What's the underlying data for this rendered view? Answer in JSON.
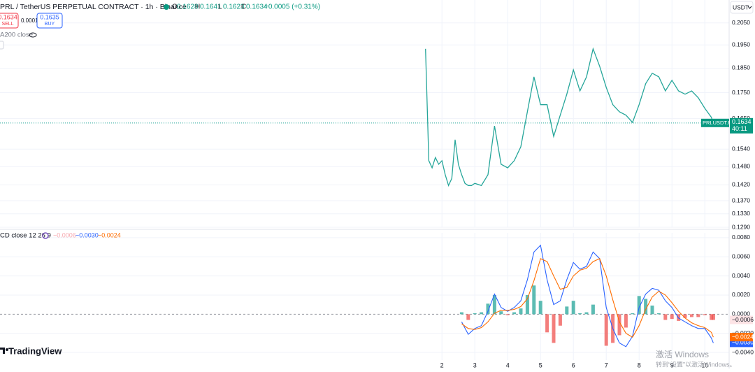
{
  "header": {
    "symbol": "PRL / TetherUS PERPETUAL CONTRACT · 1h · Binance",
    "ohlc": [
      {
        "label": "O",
        "value": 0.1628
      },
      {
        "label": "H",
        "value": 0.1641
      },
      {
        "label": "L",
        "value": 0.1623
      },
      {
        "label": "C",
        "value": 0.1634
      }
    ],
    "change": "+0.0005 (+0.31%)",
    "sell": {
      "price": 0.1634,
      "label": "SELL"
    },
    "spread": 0.0001,
    "buy": {
      "price": 0.1635,
      "label": "BUY"
    },
    "ma_label": "A200 close",
    "macd_label": "CD close 12 26 9",
    "currency": "USDT",
    "brand": "TradingView"
  },
  "watermark": {
    "title": "激活 Windows",
    "subtitle": "转到“设置”以激活Windows。"
  },
  "chart_data": [
    {
      "type": "line",
      "log_scale": true,
      "grid": true,
      "color": "#26a69a",
      "x": [
        1.5,
        1.6,
        1.7,
        1.8,
        1.9,
        2.0,
        2.1,
        2.2,
        2.3,
        2.4,
        2.5,
        2.6,
        2.7,
        2.8,
        2.9,
        3.0,
        3.2,
        3.4,
        3.6,
        3.8,
        4.0,
        4.2,
        4.4,
        4.6,
        4.8,
        5.0,
        5.2,
        5.4,
        5.6,
        5.8,
        6.0,
        6.2,
        6.4,
        6.6,
        6.8,
        7.0,
        7.2,
        7.4,
        7.6,
        7.8,
        8.0,
        8.2,
        8.4,
        8.6,
        8.8,
        9.0,
        9.2,
        9.4,
        9.6,
        9.8,
        10.0,
        10.2,
        10.26
      ],
      "values": [
        0.1933,
        0.15,
        0.1476,
        0.1511,
        0.1488,
        0.15,
        0.1453,
        0.1418,
        0.1441,
        0.1573,
        0.1488,
        0.1453,
        0.1425,
        0.1418,
        0.1418,
        0.1425,
        0.1418,
        0.1453,
        0.1623,
        0.1488,
        0.1476,
        0.15,
        0.1548,
        0.1676,
        0.1814,
        0.1703,
        0.1703,
        0.1585,
        0.1663,
        0.1744,
        0.1843,
        0.1757,
        0.1814,
        0.1933,
        0.1858,
        0.1771,
        0.1703,
        0.1676,
        0.1663,
        0.1636,
        0.1703,
        0.1786,
        0.1829,
        0.1814,
        0.1757,
        0.18,
        0.1757,
        0.1744,
        0.1757,
        0.173,
        0.1689,
        0.1655,
        0.1634
      ],
      "xlim": [
        -11.45,
        10.74
      ],
      "ylim": [
        0.129,
        0.2159
      ],
      "yticks": [
        {
          "value": 0.205,
          "label": "0.2050"
        },
        {
          "value": 0.195,
          "label": "0.1950"
        },
        {
          "value": 0.185,
          "label": "0.1850"
        },
        {
          "value": 0.175,
          "label": "0.1750"
        },
        {
          "value": 0.165,
          "label": "0.1650"
        },
        {
          "value": 0.154,
          "label": "0.1540"
        },
        {
          "value": 0.148,
          "label": "0.1480"
        },
        {
          "value": 0.142,
          "label": "0.1420"
        },
        {
          "value": 0.137,
          "label": "0.1370"
        },
        {
          "value": 0.133,
          "label": "0.1330"
        },
        {
          "value": 0.129,
          "label": "0.1290"
        }
      ],
      "last_price": 0.1634,
      "symbol_tag": "PRLUSDT.P",
      "countdown": "40:11"
    },
    {
      "type": "macd",
      "grid": true,
      "x": [
        2.6,
        2.8,
        3.0,
        3.2,
        3.4,
        3.6,
        3.8,
        4.0,
        4.2,
        4.4,
        4.6,
        4.8,
        5.0,
        5.2,
        5.4,
        5.6,
        5.8,
        6.0,
        6.2,
        6.4,
        6.6,
        6.8,
        7.0,
        7.2,
        7.4,
        7.6,
        7.8,
        8.0,
        8.2,
        8.4,
        8.6,
        8.8,
        9.0,
        9.2,
        9.4,
        9.6,
        9.8,
        10.0,
        10.2,
        10.26
      ],
      "series": [
        {
          "style": "bar",
          "color": "#26a69a",
          "negative_color": "#ef5350",
          "last_label": "−0.0006",
          "values": [
            0.0002,
            -0.0006,
            0.0001,
            0.0002,
            0.0011,
            0.002,
            0.0003,
            -0.0001,
            0.0002,
            0.0006,
            0.002,
            0.003,
            0.0014,
            -0.0019,
            -0.003,
            -0.0012,
            0.0008,
            0.0014,
            0.0001,
            0.0002,
            0.001,
            0.0,
            -0.0033,
            -0.003,
            -0.0022,
            -0.0014,
            0.0001,
            0.0019,
            0.0016,
            0.0009,
            0.0001,
            -0.0006,
            -0.0005,
            -0.0007,
            -0.0004,
            -0.0003,
            -0.0003,
            -0.0001,
            -0.0006,
            -0.0006
          ]
        },
        {
          "style": "line",
          "color": "#2962ff",
          "last_label": "−0.0030",
          "values": [
            -0.0008,
            -0.0021,
            -0.0015,
            -0.0012,
            0.0003,
            0.0021,
            0.0007,
            0.0003,
            0.0007,
            0.0014,
            0.0036,
            0.0065,
            0.0072,
            0.0036,
            0.001,
            0.0014,
            0.0036,
            0.0054,
            0.0047,
            0.005,
            0.0065,
            0.0058,
            0.0007,
            -0.0015,
            -0.003,
            -0.0034,
            -0.0023,
            0.0007,
            0.0021,
            0.0027,
            0.0025,
            0.0014,
            0.0007,
            -0.0004,
            -0.0008,
            -0.0012,
            -0.0015,
            -0.0015,
            -0.0025,
            -0.003
          ]
        },
        {
          "style": "line",
          "color": "#ff6d00",
          "last_label": "−0.0024",
          "values": [
            -0.001,
            -0.0015,
            -0.0016,
            -0.0014,
            -0.0008,
            0.0001,
            0.0004,
            0.0004,
            0.0005,
            0.0008,
            0.0016,
            0.0035,
            0.0058,
            0.0055,
            0.004,
            0.0026,
            0.0028,
            0.004,
            0.0046,
            0.0048,
            0.0055,
            0.0058,
            0.004,
            0.0015,
            -0.0008,
            -0.002,
            -0.0024,
            -0.0012,
            0.0005,
            0.0018,
            0.0024,
            0.002,
            0.0012,
            0.0003,
            -0.0004,
            -0.0009,
            -0.0012,
            -0.0014,
            -0.0019,
            -0.0024
          ]
        }
      ],
      "xlim": [
        -11.45,
        10.74
      ],
      "ylim": [
        -0.0048,
        0.0085
      ],
      "yticks": [
        {
          "value": 0.008,
          "label": "0.0080"
        },
        {
          "value": 0.006,
          "label": "0.0060"
        },
        {
          "value": 0.004,
          "label": "0.0040"
        },
        {
          "value": 0.002,
          "label": "0.0020"
        },
        {
          "value": 0,
          "label": "0.0000"
        },
        {
          "value": -0.002,
          "label": "−0.0020"
        },
        {
          "value": -0.004,
          "label": "−0.0040"
        }
      ],
      "xticks": [
        2,
        3,
        4,
        5,
        6,
        7,
        8,
        9,
        10
      ]
    }
  ]
}
